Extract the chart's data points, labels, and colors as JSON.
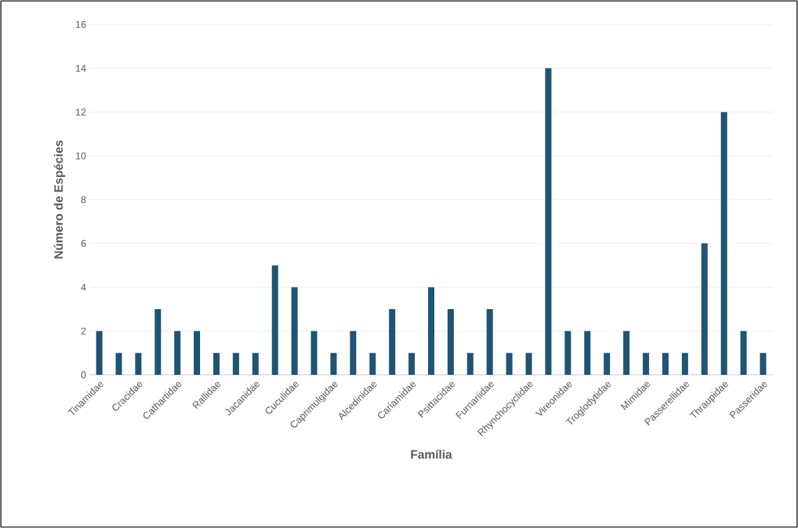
{
  "chart_data": {
    "type": "bar",
    "xlabel": "Família",
    "ylabel": "Número de Espécies",
    "categories": [
      "Tinamidae",
      null,
      "Cracidae",
      null,
      "Cathartidae",
      null,
      "Rallidae",
      null,
      "Jacanidae",
      null,
      "Cuculidae",
      null,
      "Caprimulgidae",
      null,
      "Alcedinidae",
      null,
      "Cariamidae",
      null,
      "Psittacidae",
      null,
      "Furnariidae",
      null,
      "Rhynchocyclidae",
      null,
      "Vireonidae",
      null,
      "Troglodytidae",
      null,
      "Mimidae",
      null,
      "Passerellidae",
      null,
      "Thraupidae",
      null,
      "Passeridae"
    ],
    "values": [
      2,
      1,
      1,
      3,
      2,
      2,
      1,
      1,
      1,
      5,
      4,
      2,
      1,
      2,
      1,
      3,
      1,
      4,
      3,
      1,
      3,
      1,
      1,
      14,
      2,
      2,
      1,
      2,
      1,
      1,
      1,
      6,
      12,
      2,
      1
    ],
    "color": "#1f5573",
    "ylim": [
      0,
      16
    ],
    "yticks": [
      0,
      2,
      4,
      6,
      8,
      10,
      12,
      14,
      16
    ],
    "grid": "y"
  }
}
